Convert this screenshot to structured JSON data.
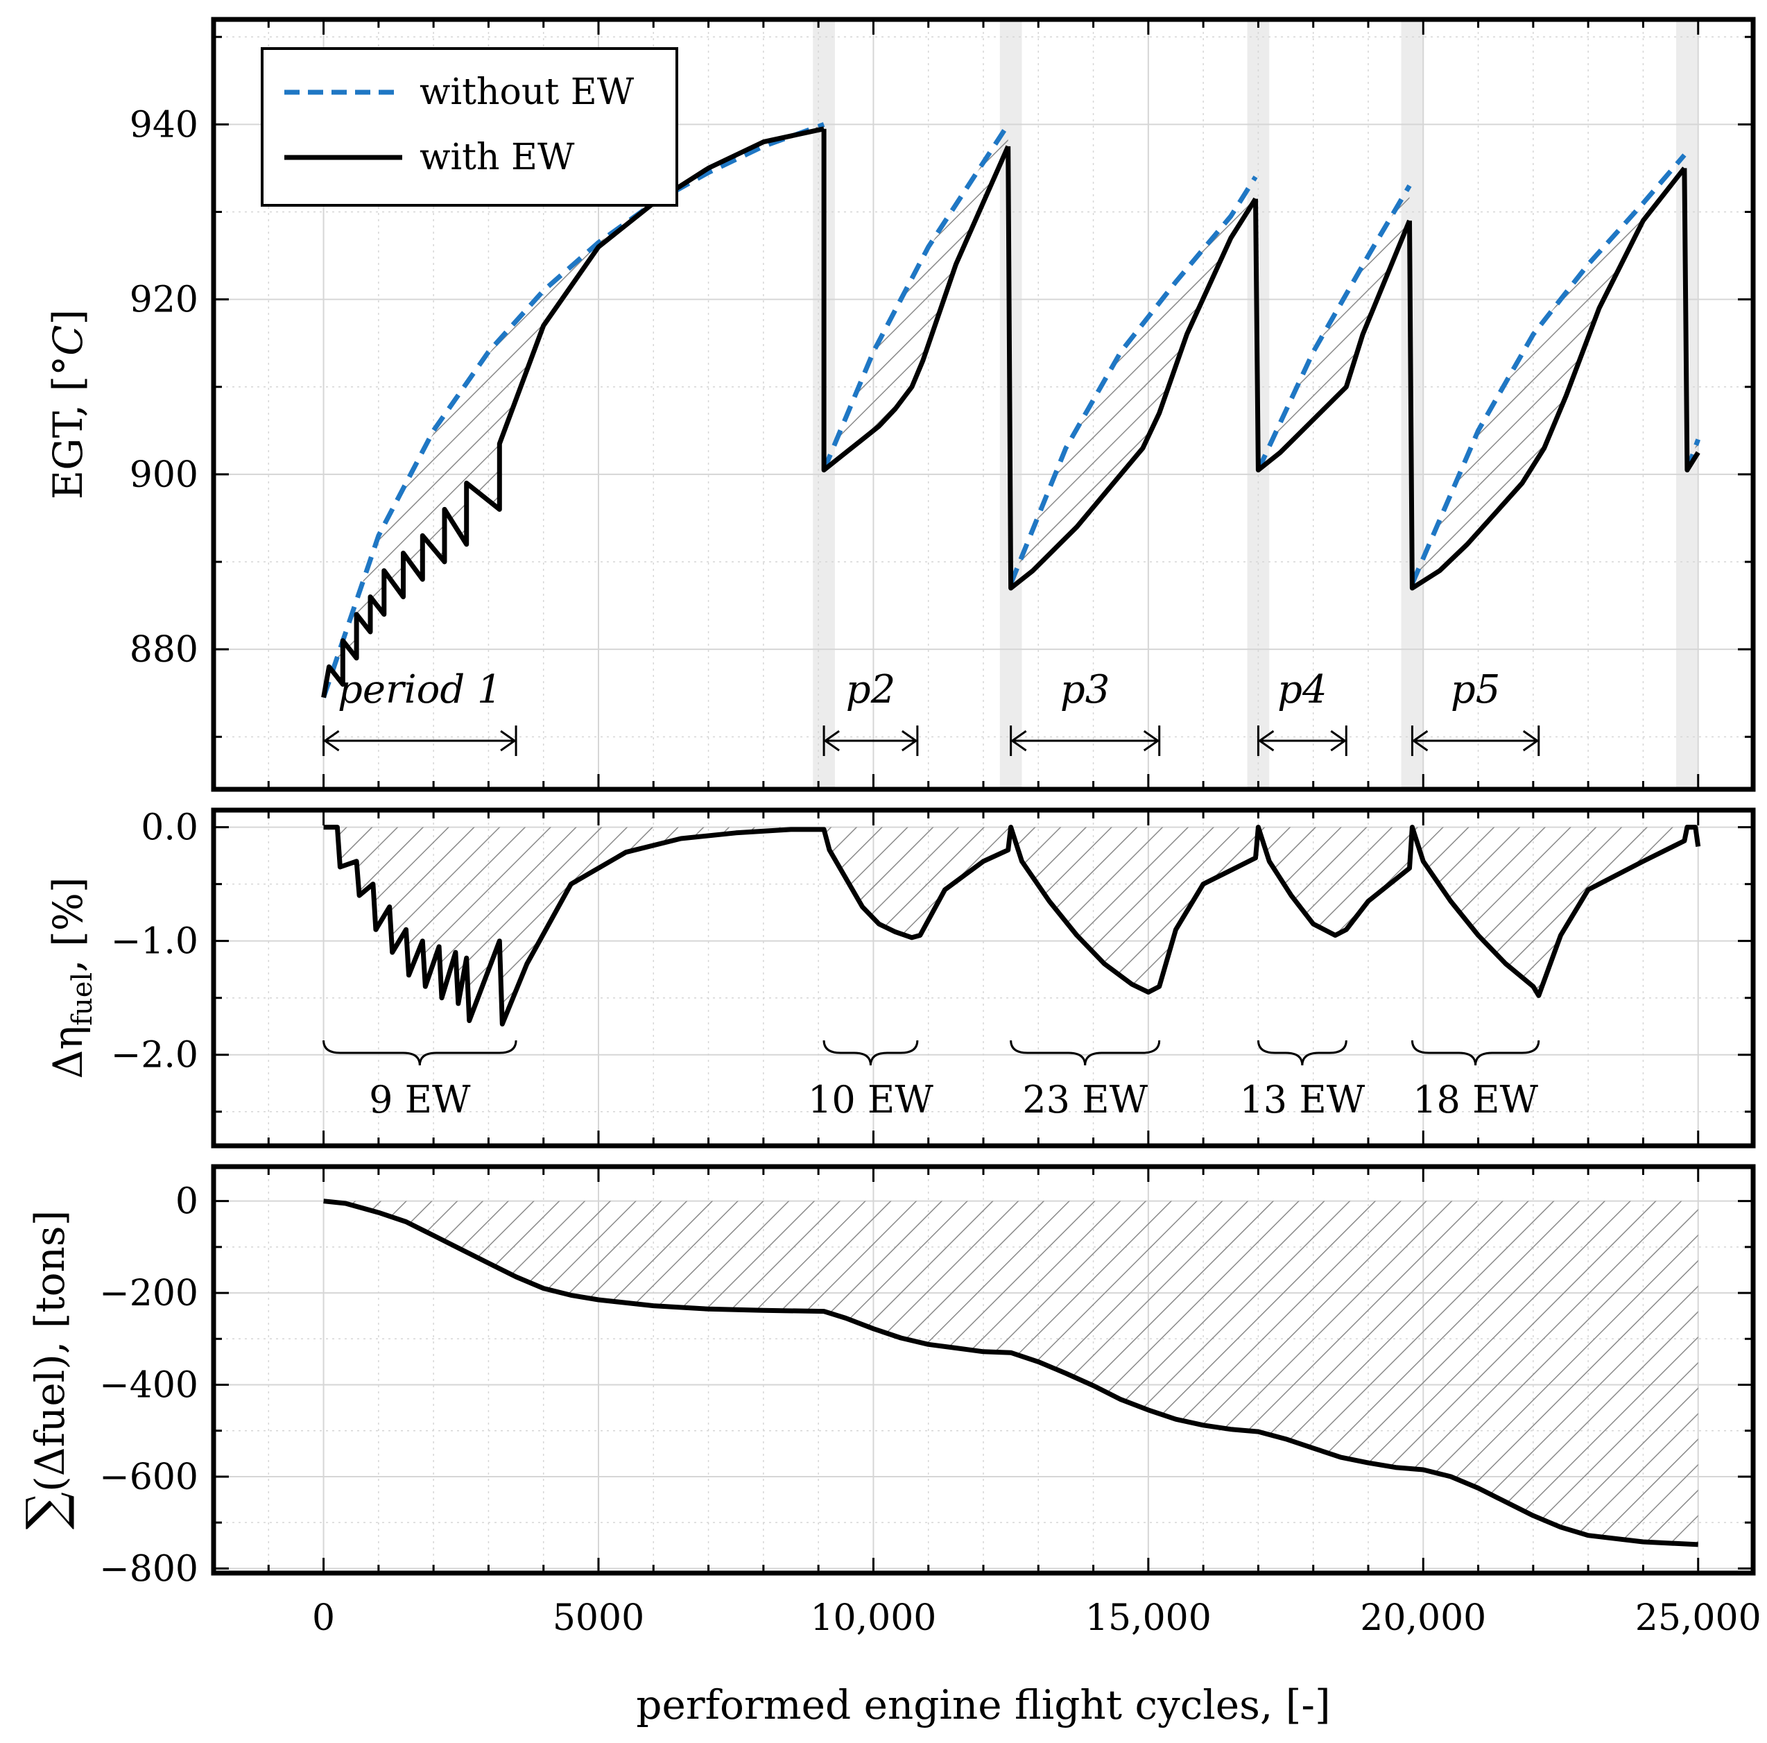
{
  "chart_data": [
    {
      "type": "line",
      "panel": "top",
      "ylabel": "EGT, [°C]",
      "ylabel_parts": [
        "EGT, [°",
        "C",
        "]"
      ],
      "xlim": [
        -2000,
        26000
      ],
      "ylim": [
        864,
        952
      ],
      "yticks": [
        880,
        900,
        920,
        940
      ],
      "ytick_labels": [
        "880",
        "900",
        "920",
        "940"
      ],
      "legend": {
        "position": "top-left",
        "entries": [
          "without EW",
          "with EW"
        ]
      },
      "colors": {
        "without_ew": "#1f77c4",
        "with_ew": "#000000",
        "wash_band": "#ececec",
        "hatch": "#8a8a8a"
      },
      "wash_events": [
        9100,
        12500,
        17000,
        19800,
        24800
      ],
      "series": [
        {
          "name": "without EW",
          "style": "dashed",
          "segments": [
            {
              "x": [
                0,
                1000,
                2000,
                3000,
                4000,
                5000,
                6000,
                7000,
                8000,
                9100
              ],
              "y": [
                874.5,
                893,
                905,
                914,
                921,
                926.5,
                931,
                934.5,
                937.5,
                940
              ]
            },
            {
              "x": [
                9100,
                10000,
                11000,
                12450
              ],
              "y": [
                900.5,
                914,
                926,
                940
              ]
            },
            {
              "x": [
                12500,
                13500,
                14500,
                15500,
                16500,
                16950
              ],
              "y": [
                887.5,
                903,
                914,
                922,
                929.5,
                934
              ]
            },
            {
              "x": [
                17000,
                18000,
                19000,
                19750
              ],
              "y": [
                900.5,
                914,
                925,
                933
              ]
            },
            {
              "x": [
                19800,
                21000,
                22000,
                23000,
                24000,
                24750
              ],
              "y": [
                887.5,
                905,
                916,
                924,
                931,
                936.5
              ]
            },
            {
              "x": [
                24800,
                25000
              ],
              "y": [
                900.5,
                904
              ]
            }
          ]
        },
        {
          "name": "with EW",
          "style": "solid",
          "segments": [
            {
              "x": [
                0,
                100,
                350,
                350,
                600,
                600,
                850,
                850,
                1100,
                1100,
                1450,
                1450,
                1800,
                1800,
                2200,
                2200,
                2600,
                2600,
                3200,
                3200,
                4000,
                5000,
                6000,
                7000,
                8000,
                9100
              ],
              "y": [
                874.5,
                878,
                876,
                881,
                879,
                884,
                882,
                886,
                884,
                889,
                886,
                891,
                888,
                893,
                890,
                896,
                892,
                899,
                896,
                903.5,
                917,
                926,
                931,
                935,
                938,
                939.5
              ]
            },
            {
              "x": [
                9100,
                9500,
                9800,
                10100,
                10400,
                10700,
                10900,
                11500,
                12450
              ],
              "y": [
                900.5,
                902.5,
                904,
                905.5,
                907.5,
                910,
                913,
                924,
                937.5
              ]
            },
            {
              "x": [
                12500,
                12900,
                13300,
                13700,
                14100,
                14500,
                14900,
                15200,
                15700,
                16500,
                16950
              ],
              "y": [
                887,
                889,
                891.5,
                894,
                897,
                900,
                903,
                907,
                916,
                927,
                931.5
              ]
            },
            {
              "x": [
                17000,
                17400,
                17800,
                18200,
                18600,
                18900,
                19750
              ],
              "y": [
                900.5,
                902.5,
                905,
                907.5,
                910,
                916,
                929
              ]
            },
            {
              "x": [
                19800,
                20300,
                20800,
                21300,
                21800,
                22200,
                22600,
                23200,
                24000,
                24750
              ],
              "y": [
                887,
                889,
                892,
                895.5,
                899,
                903,
                909,
                919,
                929,
                935
              ]
            },
            {
              "x": [
                24800,
                25000
              ],
              "y": [
                900.5,
                902.5
              ]
            }
          ]
        }
      ],
      "annotations": [
        {
          "label": "period 1",
          "from": 0,
          "to": 3500
        },
        {
          "label": "p2",
          "from": 9100,
          "to": 10800
        },
        {
          "label": "p3",
          "from": 12500,
          "to": 15200
        },
        {
          "label": "p4",
          "from": 17000,
          "to": 18600
        },
        {
          "label": "p5",
          "from": 19800,
          "to": 22100
        }
      ]
    },
    {
      "type": "line",
      "panel": "middle",
      "ylabel": "Δη fuel, [%]",
      "ylabel_parts": [
        "Δη",
        "fuel",
        ", [%]"
      ],
      "xlim": [
        -2000,
        26000
      ],
      "ylim": [
        -2.8,
        0.15
      ],
      "yticks": [
        0.0,
        -1.0,
        -2.0
      ],
      "ytick_labels": [
        "0.0",
        "−1.0",
        "−2.0"
      ],
      "series": [
        {
          "name": "",
          "x": [
            0,
            250,
            300,
            600,
            650,
            900,
            950,
            1200,
            1250,
            1500,
            1550,
            1800,
            1850,
            2100,
            2150,
            2400,
            2450,
            2600,
            2650,
            3200,
            3250,
            3700,
            4500,
            5500,
            6500,
            7500,
            8500,
            9100,
            9200,
            9500,
            9800,
            10100,
            10400,
            10700,
            10850,
            11300,
            12000,
            12450,
            12500,
            12700,
            13200,
            13700,
            14200,
            14700,
            15000,
            15200,
            15500,
            16000,
            16950,
            17000,
            17200,
            17600,
            18000,
            18400,
            18600,
            19000,
            19750,
            19800,
            20000,
            20500,
            21000,
            21500,
            22000,
            22100,
            22500,
            23000,
            24000,
            24750,
            24800,
            24950,
            25000
          ],
          "y": [
            0.0,
            0.0,
            -0.35,
            -0.3,
            -0.6,
            -0.5,
            -0.9,
            -0.7,
            -1.1,
            -0.9,
            -1.3,
            -1.0,
            -1.4,
            -1.05,
            -1.5,
            -1.1,
            -1.55,
            -1.15,
            -1.7,
            -1.0,
            -1.73,
            -1.2,
            -0.5,
            -0.22,
            -0.1,
            -0.05,
            -0.02,
            -0.02,
            -0.2,
            -0.45,
            -0.7,
            -0.85,
            -0.92,
            -0.97,
            -0.95,
            -0.55,
            -0.3,
            -0.2,
            0.0,
            -0.3,
            -0.65,
            -0.95,
            -1.2,
            -1.38,
            -1.45,
            -1.4,
            -0.9,
            -0.5,
            -0.27,
            0.0,
            -0.3,
            -0.6,
            -0.85,
            -0.95,
            -0.9,
            -0.65,
            -0.36,
            0.0,
            -0.3,
            -0.65,
            -0.95,
            -1.2,
            -1.4,
            -1.48,
            -0.95,
            -0.55,
            -0.3,
            -0.12,
            0.0,
            0.0,
            -0.17
          ]
        }
      ],
      "annotations": [
        {
          "label": "9 EW",
          "from": 0,
          "to": 3500
        },
        {
          "label": "10 EW",
          "from": 9100,
          "to": 10800
        },
        {
          "label": "23 EW",
          "from": 12500,
          "to": 15200
        },
        {
          "label": "13 EW",
          "from": 17000,
          "to": 18600
        },
        {
          "label": "18 EW",
          "from": 19800,
          "to": 22100
        }
      ]
    },
    {
      "type": "line",
      "panel": "bottom",
      "ylabel": "∑(Δfuel), [tons]",
      "ylabel_parts": [
        "∑",
        "(Δfuel), [tons]"
      ],
      "xlabel": "performed engine flight cycles, [-]",
      "xlim": [
        -2000,
        26000
      ],
      "ylim": [
        -810,
        75
      ],
      "yticks": [
        0,
        -200,
        -400,
        -600,
        -800
      ],
      "ytick_labels": [
        "0",
        "−200",
        "−400",
        "−600",
        "−800"
      ],
      "xticks": [
        0,
        5000,
        10000,
        15000,
        20000,
        25000
      ],
      "xtick_labels": [
        "0",
        "5000",
        "10,000",
        "15,000",
        "20,000",
        "25,000"
      ],
      "series": [
        {
          "name": "",
          "x": [
            0,
            400,
            1000,
            1500,
            2000,
            2500,
            3000,
            3500,
            4000,
            4500,
            5000,
            6000,
            7000,
            8000,
            9100,
            9500,
            10000,
            10500,
            11000,
            11500,
            12000,
            12500,
            13000,
            13500,
            14000,
            14500,
            15000,
            15500,
            16000,
            16500,
            17000,
            17500,
            18000,
            18500,
            19000,
            19500,
            20000,
            20500,
            21000,
            21500,
            22000,
            22500,
            23000,
            24000,
            25000
          ],
          "y": [
            0,
            -5,
            -25,
            -45,
            -75,
            -105,
            -135,
            -165,
            -190,
            -205,
            -215,
            -228,
            -235,
            -238,
            -240,
            -255,
            -278,
            -298,
            -312,
            -320,
            -328,
            -330,
            -350,
            -375,
            -402,
            -432,
            -455,
            -475,
            -488,
            -497,
            -502,
            -518,
            -538,
            -558,
            -570,
            -580,
            -585,
            -600,
            -625,
            -655,
            -685,
            -710,
            -728,
            -742,
            -748
          ]
        }
      ]
    }
  ]
}
